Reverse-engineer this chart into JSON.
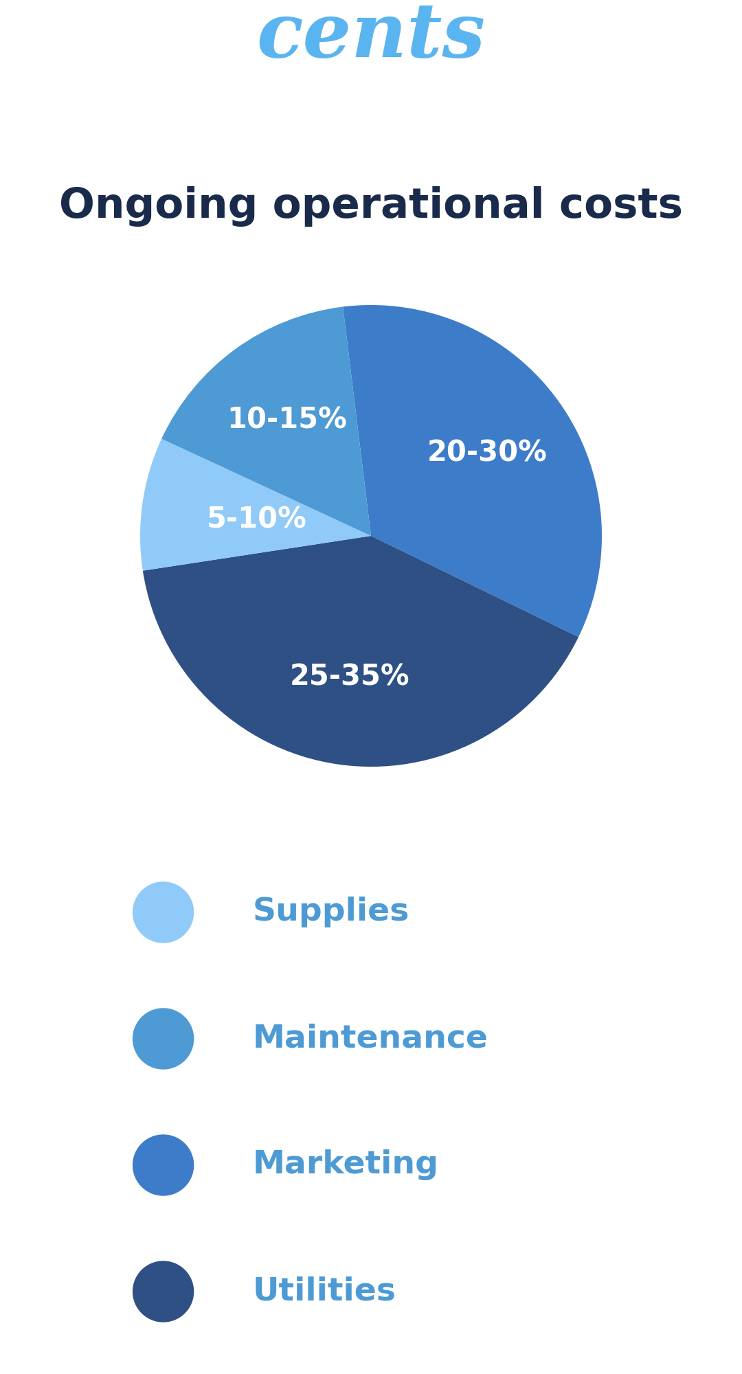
{
  "title_brand": "cents",
  "title_brand_color": "#5ab4f0",
  "title_brand_fontsize": 80,
  "title_main": "Ongoing operational costs",
  "title_main_color": "#1a2a4a",
  "title_main_fontsize": 44,
  "background_color": "#ffffff",
  "slices": [
    {
      "label": "20-30%",
      "value": 27.5,
      "color": "#3d7cc9"
    },
    {
      "label": "25-35%",
      "value": 32.5,
      "color": "#2e5085"
    },
    {
      "label": "5-10%",
      "value": 7.5,
      "color": "#90caf9"
    },
    {
      "label": "10-15%",
      "value": 13.0,
      "color": "#4d9ad4"
    }
  ],
  "slice_label_color": "#ffffff",
  "slice_label_fontsize": 30,
  "legend_items": [
    {
      "label": "Supplies",
      "color": "#90caf9"
    },
    {
      "label": "Maintenance",
      "color": "#4d9ad4"
    },
    {
      "label": "Marketing",
      "color": "#3d7cc9"
    },
    {
      "label": "Utilities",
      "color": "#2e5085"
    }
  ],
  "legend_label_color": "#4d9ad4",
  "legend_label_fontsize": 34,
  "startangle": 97
}
